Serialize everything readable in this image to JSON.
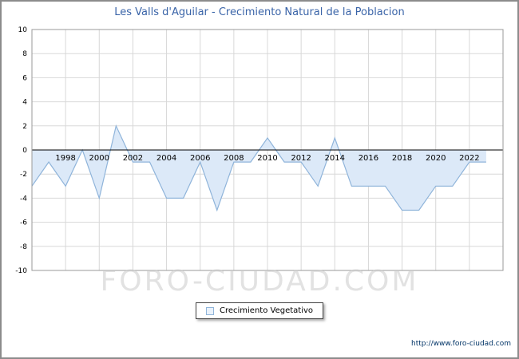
{
  "title": "Les Valls d'Aguilar - Crecimiento Natural de la Poblacion",
  "legend": {
    "label": "Crecimiento Vegetativo"
  },
  "watermark": "FORO-CIUDAD.COM",
  "footer_url": "http://www.foro-ciudad.com",
  "colors": {
    "title": "#3a64a8",
    "footer": "#003366",
    "watermark": "#cbcbcb",
    "window_border": "#8c8c8c"
  },
  "chart_data": {
    "type": "area",
    "title": "Les Valls d'Aguilar - Crecimiento Natural de la Poblacion",
    "xlabel": "",
    "ylabel": "",
    "xlim": [
      1996,
      2024
    ],
    "ylim": [
      -10,
      10
    ],
    "grid": true,
    "legend_position": "bottom-center",
    "x_ticks": [
      1998,
      2000,
      2002,
      2004,
      2006,
      2008,
      2010,
      2012,
      2014,
      2016,
      2018,
      2020,
      2022
    ],
    "y_ticks": [
      10,
      8,
      6,
      4,
      2,
      0,
      -2,
      -4,
      -6,
      -8,
      -10
    ],
    "series": [
      {
        "name": "Crecimiento Vegetativo",
        "x": [
          1996,
          1997,
          1998,
          1999,
          2000,
          2001,
          2002,
          2003,
          2004,
          2005,
          2006,
          2007,
          2008,
          2009,
          2010,
          2011,
          2012,
          2013,
          2014,
          2015,
          2016,
          2017,
          2018,
          2019,
          2020,
          2021,
          2022,
          2023
        ],
        "values": [
          -3,
          -1,
          -3,
          0,
          -4,
          2,
          -1,
          -1,
          -4,
          -4,
          -1,
          -5,
          -1,
          -1,
          1,
          -1,
          -1,
          -3,
          1,
          -3,
          -3,
          -3,
          -5,
          -5,
          -3,
          -3,
          -1,
          -1
        ]
      }
    ],
    "colors": {
      "fill": "#dce9f8",
      "line": "#8fb4da",
      "grid": "#d8d8d8",
      "plot_border": "#9a9a9a",
      "zero_line": "#000000"
    }
  }
}
